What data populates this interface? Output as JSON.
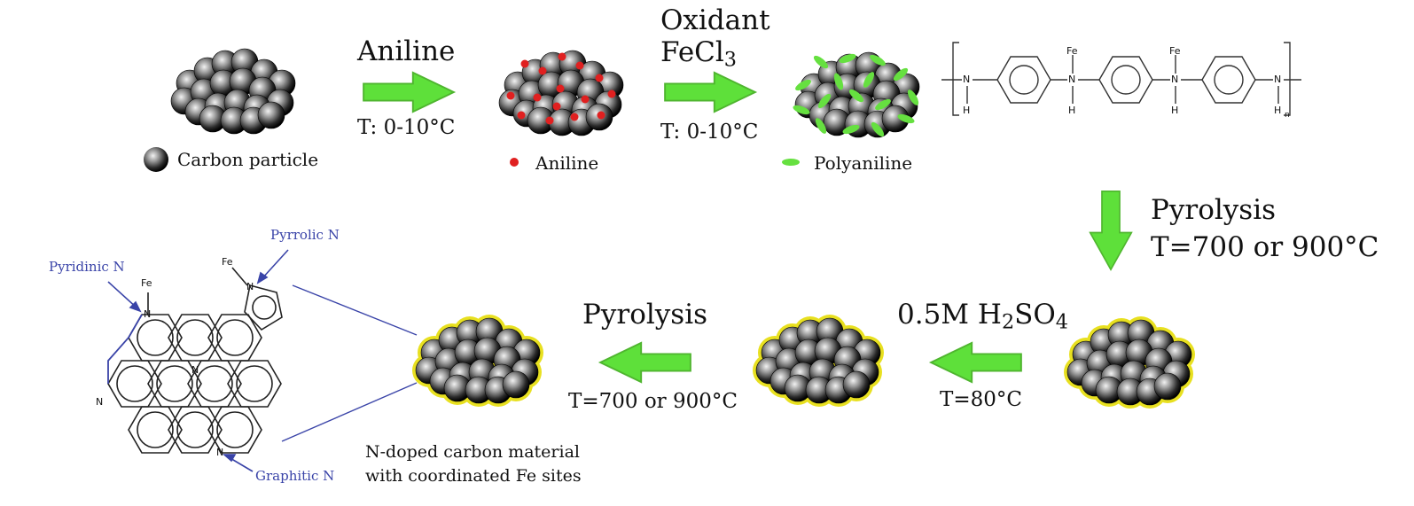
{
  "step1": {
    "reagent": "Aniline",
    "temp": "T: 0-10°C"
  },
  "step2": {
    "reagent_line1": "Oxidant",
    "reagent_line2_main": "FeCl",
    "reagent_line2_sub": "3",
    "temp": "T: 0-10°C"
  },
  "step3": {
    "label": "Pyrolysis",
    "temp": "T=700 or 900°C"
  },
  "step4": {
    "reagent_pre": "0.5M H",
    "reagent_sub1": "2",
    "reagent_mid": "SO",
    "reagent_sub2": "4",
    "temp": "T=80°C"
  },
  "step5": {
    "label": "Pyrolysis",
    "temp": "T=700 or 900°C"
  },
  "legend": {
    "carbon": "Carbon particle",
    "aniline": "Aniline",
    "polyaniline": "Polyaniline"
  },
  "product": {
    "line1": "N-doped carbon material",
    "line2": "with coordinated Fe sites"
  },
  "nitrogen_types": {
    "pyrrolic": "Pyrrolic N",
    "pyridinic": "Pyridinic N",
    "graphitic": "Graphitic N"
  },
  "atoms": {
    "fe": "Fe",
    "n": "N",
    "h": "H",
    "n_sub": "n"
  },
  "colors": {
    "arrow": "#5ee03a",
    "aniline_dot": "#e02020",
    "polyaniline": "#66e040",
    "coating": "#e8e020",
    "label_blue": "#3a44a8"
  }
}
